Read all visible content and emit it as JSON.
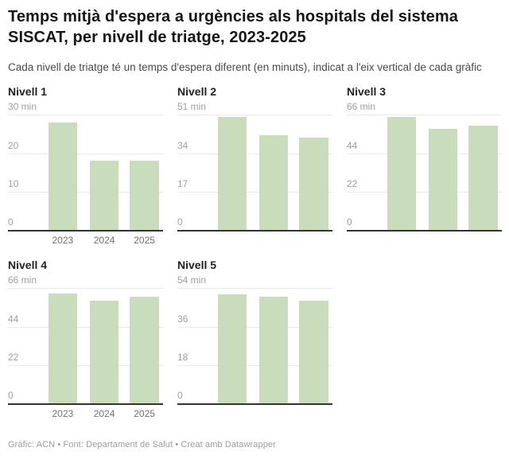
{
  "header": {
    "title": "Temps mitjà d'espera a urgències als hospitals del sistema SISCAT, per nivell de triatge, 2023-2025",
    "subtitle": "Cada nivell de triatge té un temps d'espera diferent (en minuts), indicat a l'eix vertical de cada gràfic"
  },
  "colors": {
    "bar": "#c9dcbc",
    "gridline": "#e9e9e9",
    "axis": "#333333",
    "tick_label": "#9e9e9e",
    "year_label": "#707070"
  },
  "chart_data": [
    {
      "type": "bar",
      "title": "Nivell 1",
      "categories": [
        "2023",
        "2024",
        "2025"
      ],
      "values": [
        28,
        18,
        18
      ],
      "unit": "min",
      "top_tick_label": "30 min",
      "yticks": [
        0,
        10,
        20,
        30
      ],
      "ylim": [
        0,
        30
      ],
      "xlabel": "",
      "ylabel": "",
      "grid": true,
      "show_x_labels": true
    },
    {
      "type": "bar",
      "title": "Nivell 2",
      "categories": [
        "2023",
        "2024",
        "2025"
      ],
      "values": [
        50,
        42,
        41
      ],
      "unit": "min",
      "top_tick_label": "51 min",
      "yticks": [
        0,
        17,
        34,
        51
      ],
      "ylim": [
        0,
        51
      ],
      "xlabel": "",
      "ylabel": "",
      "grid": true,
      "show_x_labels": false
    },
    {
      "type": "bar",
      "title": "Nivell 3",
      "categories": [
        "2023",
        "2024",
        "2025"
      ],
      "values": [
        65,
        58,
        60
      ],
      "unit": "min",
      "top_tick_label": "66 min",
      "yticks": [
        0,
        22,
        44,
        66
      ],
      "ylim": [
        0,
        66
      ],
      "xlabel": "",
      "ylabel": "",
      "grid": true,
      "show_x_labels": false
    },
    {
      "type": "bar",
      "title": "Nivell 4",
      "categories": [
        "2023",
        "2024",
        "2025"
      ],
      "values": [
        63,
        59,
        61
      ],
      "unit": "min",
      "top_tick_label": "66 min",
      "yticks": [
        0,
        22,
        44,
        66
      ],
      "ylim": [
        0,
        66
      ],
      "xlabel": "",
      "ylabel": "",
      "grid": true,
      "show_x_labels": true
    },
    {
      "type": "bar",
      "title": "Nivell 5",
      "categories": [
        "2023",
        "2024",
        "2025"
      ],
      "values": [
        51,
        50,
        48
      ],
      "unit": "min",
      "top_tick_label": "54 min",
      "yticks": [
        0,
        18,
        36,
        54
      ],
      "ylim": [
        0,
        54
      ],
      "xlabel": "",
      "ylabel": "",
      "grid": true,
      "show_x_labels": false
    }
  ],
  "footer": {
    "text": "Gràfic: ACN • Font: Departament de Salut • Creat amb Datawrapper"
  }
}
